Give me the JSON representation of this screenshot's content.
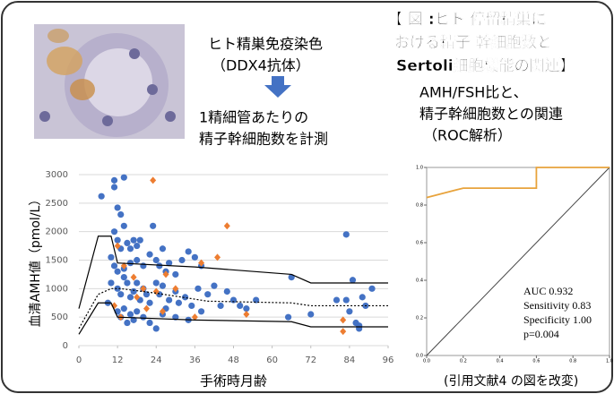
{
  "texts": {
    "title_lines": [
      "【 図 :ヒト 停留精巣に",
      "おける精子 幹細胞数と",
      "Sertoli細胞機能の関連】"
    ],
    "stain_lines": [
      "ヒト精巣免疫染色",
      "（DDX4抗体）"
    ],
    "count_lines": [
      "1精細管あたりの",
      "精子幹細胞数を計測"
    ],
    "roc_lines": [
      "AMH/FSH比と、",
      "精子幹細胞数との関連",
      "（ROC解析）"
    ],
    "source": "(引用文献4 の図を改変)"
  },
  "chart_data": [
    {
      "type": "scatter",
      "ylabel": "血清AMH値（pmol/L）",
      "xlabel": "手術時月齢",
      "xlim": [
        0,
        96
      ],
      "xticks": [
        0,
        12,
        24,
        36,
        48,
        60,
        72,
        84,
        96
      ],
      "ylim": [
        0,
        3000
      ],
      "yticks": [
        0,
        500,
        1000,
        1500,
        2000,
        2500,
        3000
      ],
      "series": [
        {
          "color": "#4472c4",
          "style": "points",
          "x": [
            7,
            11,
            11,
            14,
            12,
            13,
            14,
            11,
            12,
            15,
            17,
            18,
            16,
            19,
            13,
            10,
            11,
            12,
            14,
            16,
            18,
            20,
            22,
            24,
            25,
            28,
            26,
            23,
            27,
            30,
            32,
            34,
            36,
            38,
            10,
            12,
            13,
            14,
            15,
            16,
            17,
            18,
            19,
            20,
            21,
            22,
            24,
            25,
            26,
            27,
            28,
            30,
            31,
            33,
            35,
            37,
            40,
            42,
            44,
            46,
            48,
            50,
            52,
            55,
            12,
            13,
            14,
            15,
            16,
            17,
            18,
            20,
            22,
            24,
            26,
            30,
            34,
            38,
            9,
            65,
            66,
            72,
            83,
            85,
            83,
            86,
            87,
            88,
            89,
            91,
            87,
            84,
            80
          ],
          "values": [
            2620,
            2900,
            2780,
            2950,
            2420,
            2300,
            2100,
            2000,
            1850,
            1800,
            1850,
            1750,
            1700,
            1850,
            1700,
            1550,
            1400,
            1300,
            1350,
            1450,
            1500,
            1400,
            1600,
            1500,
            1400,
            1450,
            1700,
            2100,
            1300,
            1250,
            1500,
            1650,
            1550,
            1400,
            1100,
            1000,
            900,
            1200,
            1100,
            850,
            950,
            1100,
            800,
            1000,
            900,
            750,
            1100,
            900,
            1050,
            650,
            800,
            950,
            750,
            850,
            700,
            1000,
            900,
            1050,
            700,
            950,
            800,
            700,
            650,
            800,
            600,
            500,
            650,
            400,
            550,
            450,
            600,
            500,
            400,
            300,
            550,
            500,
            450,
            600,
            750,
            500,
            1200,
            550,
            1950,
            1150,
            800,
            400,
            300,
            850,
            700,
            1000,
            350,
            600,
            800
          ]
        },
        {
          "color": "#ed7d31",
          "style": "diamonds",
          "x": [
            23,
            46,
            12,
            14,
            17,
            20,
            24,
            27,
            30,
            38,
            43,
            11,
            13,
            21,
            26,
            36,
            52,
            82,
            82,
            18
          ],
          "values": [
            2900,
            2100,
            1750,
            1400,
            1200,
            1000,
            950,
            1250,
            1000,
            1450,
            1550,
            700,
            500,
            650,
            600,
            500,
            550,
            450,
            250,
            850
          ]
        },
        {
          "color": "#000000",
          "style": "line",
          "x": [
            0,
            6,
            10,
            12,
            36,
            66,
            72,
            96
          ],
          "values": [
            650,
            1920,
            1920,
            1450,
            1380,
            1250,
            1100,
            1100
          ]
        },
        {
          "color": "#000000",
          "style": "dotted",
          "x": [
            0,
            6,
            10,
            13,
            24,
            40,
            66,
            72,
            96
          ],
          "values": [
            300,
            900,
            1000,
            1000,
            920,
            780,
            750,
            700,
            700
          ]
        },
        {
          "color": "#000000",
          "style": "line",
          "x": [
            0,
            6,
            10,
            12,
            36,
            66,
            72,
            96
          ],
          "values": [
            200,
            750,
            750,
            500,
            450,
            420,
            330,
            330
          ]
        }
      ]
    },
    {
      "type": "line",
      "xlim": [
        0,
        1
      ],
      "ylim": [
        0,
        1
      ],
      "xticks": [
        {
          "value": 0,
          "label": "0.0"
        },
        0.2,
        0.4,
        0.6,
        0.8,
        {
          "value": 1,
          "label": "1.0"
        }
      ],
      "yticks": [
        {
          "value": 0,
          "label": "0.0"
        },
        0.2,
        0.4,
        0.6,
        0.8,
        {
          "value": 1,
          "label": "1.0"
        }
      ],
      "series": [
        {
          "color": "#e8a33c",
          "x": [
            0,
            0.2,
            0.6,
            0.6,
            1
          ],
          "values": [
            0.84,
            0.89,
            0.89,
            1,
            1
          ]
        }
      ],
      "annotations": [
        "AUC 0.932",
        "Sensitivity 0.83",
        "Specificity 1.00",
        "p=0.004"
      ]
    }
  ]
}
